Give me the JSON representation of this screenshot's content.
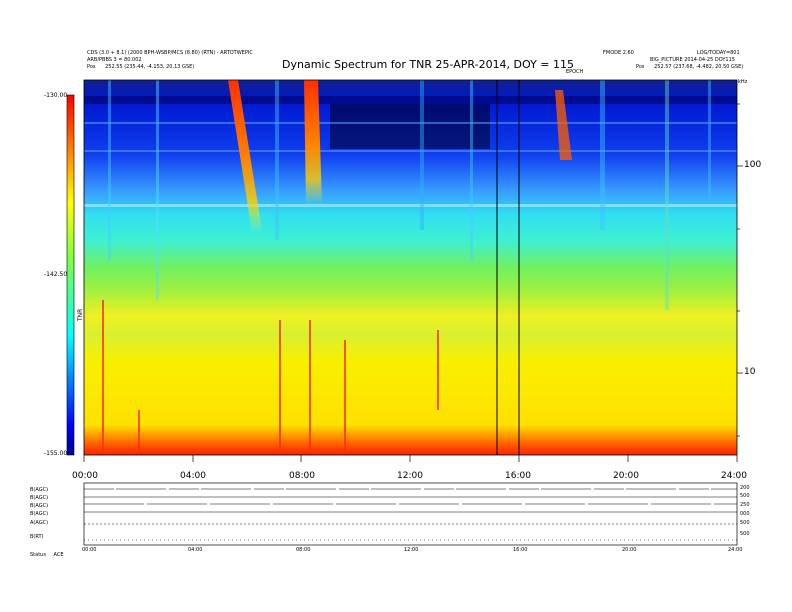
{
  "header": {
    "left_line1": "CDS (3.0 + 8.1) (2000 BPH-WSBP/MCS (8.80) (RTN) - ARTOTWEPIC",
    "left_line2": "ARB/PBBS 3 = 80.002",
    "left_line3_label": "Pos",
    "left_line3_value": "252.55 (235.44, -4.153, 20.13 GSE)",
    "center_small": "EPOCH",
    "right_line1a": "FMODE 2.60",
    "right_line1b": "LOG/TODAY=801",
    "right_line2": "BIG_PICTURE 2014-04-25 DOY115",
    "right_line3_label": "Pos",
    "right_line3_value": "252.57 (237.68, -4.482, 20.50 GSE)"
  },
  "chart_data": {
    "type": "heatmap",
    "title": "Dynamic Spectrum for TNR 25-APR-2014, DOY = 115",
    "x_axis": {
      "range_hours": [
        0,
        24
      ],
      "ticks": [
        "00:00",
        "04:00",
        "08:00",
        "12:00",
        "16:00",
        "20:00",
        "24:00"
      ]
    },
    "y_axis_right": {
      "scale": "log",
      "ticks": [
        "100",
        "10"
      ],
      "unit_label": "kHz"
    },
    "colorbar": {
      "ticks": [
        "-130.00",
        "-142.50",
        "-155.00"
      ],
      "range": [
        -155.0,
        -130.0
      ],
      "label": "TNR"
    },
    "vertical_lines_hours": [
      15.2,
      16.1
    ],
    "bands_hours": [
      [
        5.2,
        6.4
      ],
      [
        7.9,
        8.6
      ]
    ]
  },
  "bottom_panel": {
    "row_labels": [
      "B(AGC)",
      "B(AGC)",
      "B(AGC)",
      "B(AGC)",
      "A(AGC)",
      "B(RT)"
    ],
    "right_ticks": [
      "200",
      "500",
      "250",
      "000",
      "500",
      "500"
    ],
    "x_ticks": [
      "00:00",
      "04:00",
      "08:00",
      "12:00",
      "16:00",
      "20:00",
      "24:00"
    ],
    "status_label": "Status",
    "status_value": "ACE"
  },
  "colors": {
    "line": "#000000"
  }
}
